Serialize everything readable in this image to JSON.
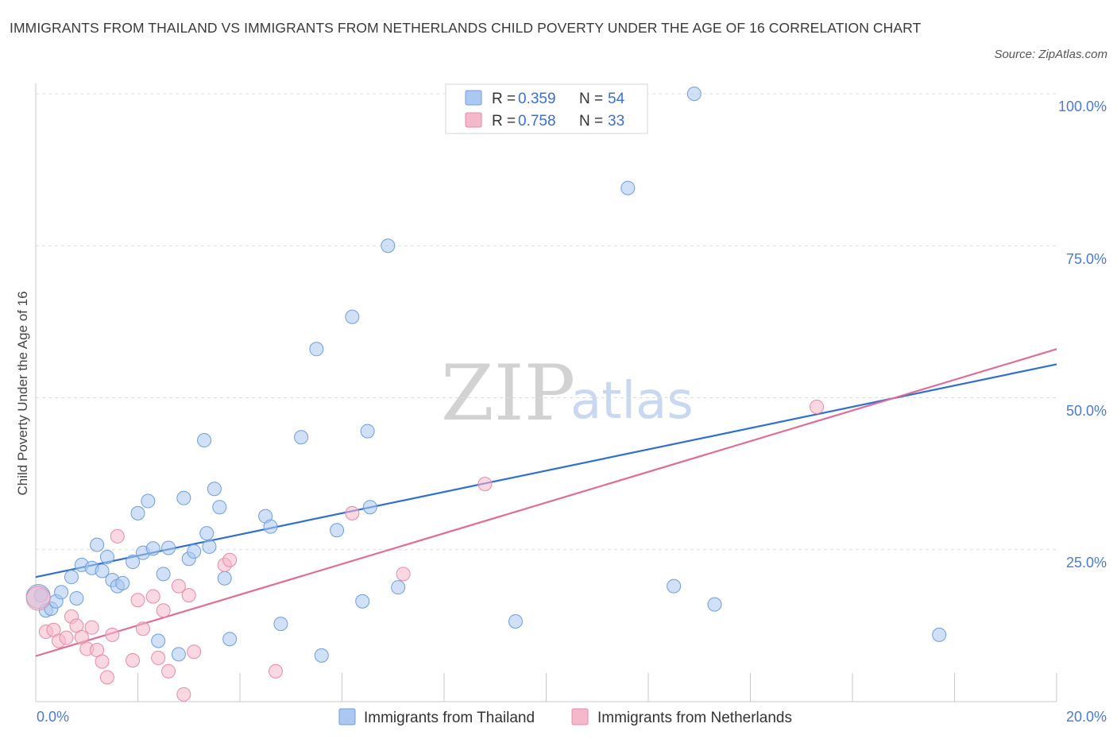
{
  "header": {
    "title": "IMMIGRANTS FROM THAILAND VS IMMIGRANTS FROM NETHERLANDS CHILD POVERTY UNDER THE AGE OF 16 CORRELATION CHART",
    "source": "Source: ZipAtlas.com"
  },
  "watermark": {
    "zip": "ZIP",
    "atlas": "atlas"
  },
  "colors": {
    "thailand_fill": "#aac8f0",
    "thailand_stroke": "#6d9de0",
    "thailand_line": "#2f6fce",
    "netherlands_fill": "#f5b8cb",
    "netherlands_stroke": "#e88aa8",
    "netherlands_line": "#e06c98",
    "tick_text": "#4a7bd0",
    "grid": "#dcdcdc"
  },
  "chart_data": {
    "type": "scatter",
    "title": "IMMIGRANTS FROM THAILAND VS IMMIGRANTS FROM NETHERLANDS CHILD POVERTY UNDER THE AGE OF 16 CORRELATION CHART",
    "xlabel": "",
    "ylabel": "Child Poverty Under the Age of 16",
    "xlim": [
      0,
      20
    ],
    "ylim": [
      0,
      100
    ],
    "x_tick_labels": [
      "0.0%",
      "20.0%"
    ],
    "y_tick_labels": [
      "100.0%",
      "75.0%",
      "50.0%",
      "25.0%"
    ],
    "y_ticks": [
      100,
      75,
      50,
      25
    ],
    "grid": true,
    "legend_position": "top-center",
    "stats": [
      {
        "r_label": "R = ",
        "r_value": "0.359",
        "n_label": "N = ",
        "n_value": "54"
      },
      {
        "r_label": "R = ",
        "r_value": "0.758",
        "n_label": "N = ",
        "n_value": "33"
      }
    ],
    "series": [
      {
        "name": "Immigrants from Thailand",
        "trend": [
          [
            0,
            20.5
          ],
          [
            20,
            55.5
          ]
        ],
        "points": [
          [
            0.1,
            17.5
          ],
          [
            0.2,
            15.0
          ],
          [
            0.3,
            15.3
          ],
          [
            0.4,
            16.5
          ],
          [
            0.5,
            18.0
          ],
          [
            0.7,
            20.5
          ],
          [
            0.8,
            17.0
          ],
          [
            0.9,
            22.5
          ],
          [
            1.1,
            22.0
          ],
          [
            1.2,
            25.8
          ],
          [
            1.3,
            21.5
          ],
          [
            1.4,
            23.8
          ],
          [
            1.5,
            20.0
          ],
          [
            1.6,
            19.0
          ],
          [
            1.7,
            19.5
          ],
          [
            1.9,
            23.0
          ],
          [
            2.0,
            31.0
          ],
          [
            2.1,
            24.5
          ],
          [
            2.2,
            33.0
          ],
          [
            2.3,
            25.2
          ],
          [
            2.4,
            10.0
          ],
          [
            2.5,
            21.0
          ],
          [
            2.6,
            25.3
          ],
          [
            2.8,
            7.8
          ],
          [
            2.9,
            33.5
          ],
          [
            3.0,
            23.5
          ],
          [
            3.1,
            24.7
          ],
          [
            3.3,
            43.0
          ],
          [
            3.35,
            27.7
          ],
          [
            3.5,
            35.0
          ],
          [
            3.4,
            25.5
          ],
          [
            3.6,
            32.0
          ],
          [
            3.7,
            20.3
          ],
          [
            3.8,
            10.3
          ],
          [
            4.5,
            30.5
          ],
          [
            4.6,
            28.8
          ],
          [
            4.8,
            12.8
          ],
          [
            5.2,
            43.5
          ],
          [
            5.5,
            58.0
          ],
          [
            5.6,
            7.6
          ],
          [
            5.9,
            28.2
          ],
          [
            6.2,
            63.3
          ],
          [
            6.4,
            16.5
          ],
          [
            6.5,
            44.5
          ],
          [
            6.55,
            32.0
          ],
          [
            6.9,
            75.0
          ],
          [
            7.1,
            18.8
          ],
          [
            9.4,
            13.2
          ],
          [
            11.6,
            84.5
          ],
          [
            12.5,
            19.0
          ],
          [
            12.9,
            100.0
          ],
          [
            13.3,
            16.0
          ],
          [
            17.7,
            11.0
          ],
          [
            0.05,
            17.3
          ]
        ]
      },
      {
        "name": "Immigrants from Netherlands",
        "trend": [
          [
            0,
            7.5
          ],
          [
            20,
            58.0
          ]
        ],
        "points": [
          [
            0.2,
            11.5
          ],
          [
            0.35,
            11.8
          ],
          [
            0.45,
            10.0
          ],
          [
            0.6,
            10.5
          ],
          [
            0.7,
            14.0
          ],
          [
            0.8,
            12.5
          ],
          [
            0.9,
            10.6
          ],
          [
            1.0,
            8.7
          ],
          [
            1.1,
            12.2
          ],
          [
            1.2,
            8.5
          ],
          [
            1.3,
            6.6
          ],
          [
            1.4,
            4.0
          ],
          [
            1.5,
            11.0
          ],
          [
            1.6,
            27.2
          ],
          [
            1.9,
            6.8
          ],
          [
            2.0,
            16.7
          ],
          [
            2.1,
            12.0
          ],
          [
            2.3,
            17.3
          ],
          [
            2.4,
            7.2
          ],
          [
            2.5,
            15.0
          ],
          [
            2.6,
            5.0
          ],
          [
            2.8,
            19.0
          ],
          [
            2.9,
            1.2
          ],
          [
            3.0,
            17.5
          ],
          [
            3.1,
            8.2
          ],
          [
            3.7,
            22.5
          ],
          [
            3.8,
            23.3
          ],
          [
            4.7,
            5.0
          ],
          [
            6.2,
            31.0
          ],
          [
            7.2,
            21.0
          ],
          [
            8.8,
            35.8
          ],
          [
            15.3,
            48.5
          ],
          [
            0.05,
            17.0
          ]
        ]
      }
    ]
  }
}
